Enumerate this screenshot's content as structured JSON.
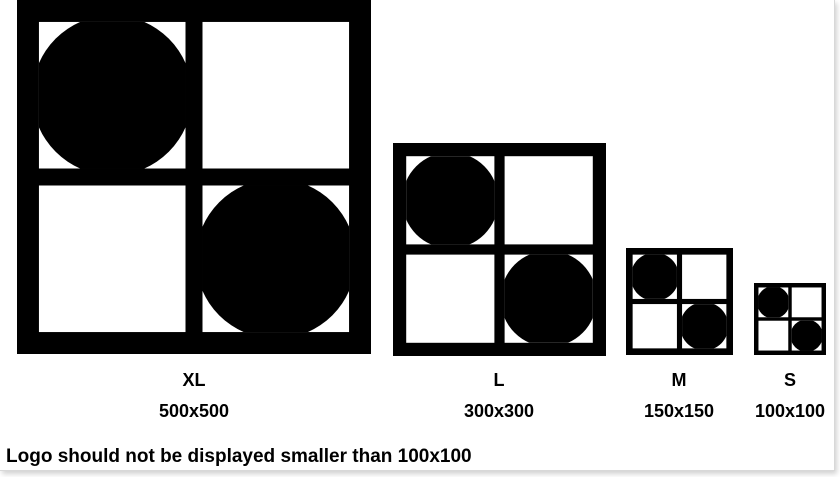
{
  "sizes": [
    {
      "name": "XL",
      "dimensions": "500x500"
    },
    {
      "name": "L",
      "dimensions": "300x300"
    },
    {
      "name": "M",
      "dimensions": "150x150"
    },
    {
      "name": "S",
      "dimensions": "100x100"
    }
  ],
  "guideline": "Logo should not be displayed smaller than 100x100",
  "colors": {
    "logo": "#000000",
    "background": "#ffffff"
  },
  "logo_icon": "quad-square-circles-logo"
}
